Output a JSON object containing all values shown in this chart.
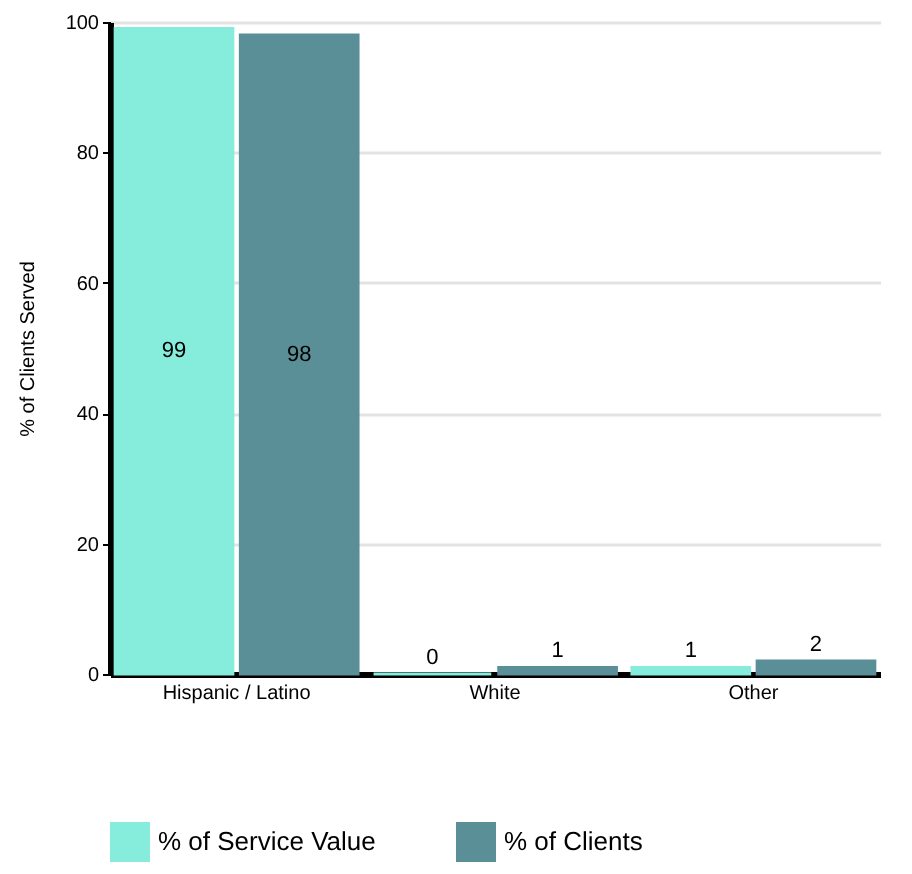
{
  "chart_data": {
    "type": "bar",
    "ylabel": "% of Clients Served",
    "categories": [
      "Hispanic / Latino",
      "White",
      "Other"
    ],
    "series": [
      {
        "name": "% of Service Value",
        "color": "#86ecdc",
        "values": [
          99,
          0,
          1
        ]
      },
      {
        "name": "% of Clients",
        "color": "#5a8f98",
        "values": [
          98,
          1,
          2
        ]
      }
    ],
    "ylim": [
      0,
      100
    ],
    "yticks": [
      0,
      20,
      40,
      60,
      80,
      100
    ],
    "grid": "y",
    "legend": "bottom",
    "data_labels": true
  }
}
